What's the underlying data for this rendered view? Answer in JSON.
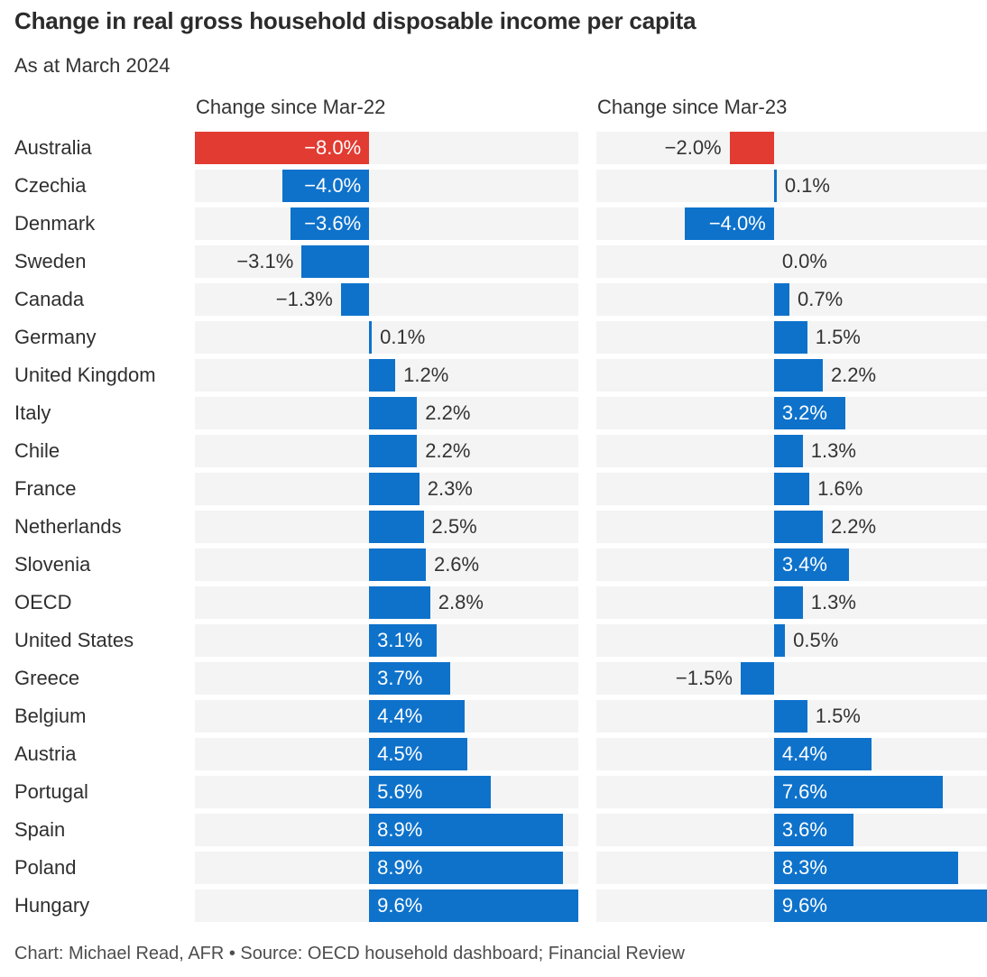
{
  "page": {
    "title": "Change in real gross household disposable income per capita",
    "subtitle": "As at March 2024",
    "footer": "Chart: Michael Read, AFR • Source: OECD household dashboard; Financial Review"
  },
  "chart_data": {
    "type": "bar",
    "orientation": "horizontal",
    "title": "Change in real gross household disposable income per capita",
    "subtitle": "As at March 2024",
    "value_format": "one_decimal_percent",
    "xlim": [
      -8.0,
      9.6
    ],
    "grid": false,
    "legend_position": "none",
    "column_headers": [
      "Change since Mar-22",
      "Change since Mar-23"
    ],
    "categories": [
      "Australia",
      "Czechia",
      "Denmark",
      "Sweden",
      "Canada",
      "Germany",
      "United Kingdom",
      "Italy",
      "Chile",
      "France",
      "Netherlands",
      "Slovenia",
      "OECD",
      "United States",
      "Greece",
      "Belgium",
      "Austria",
      "Portugal",
      "Spain",
      "Poland",
      "Hungary"
    ],
    "series": [
      {
        "name": "Change since Mar-22",
        "values": [
          -8.0,
          -4.0,
          -3.6,
          -3.1,
          -1.3,
          0.1,
          1.2,
          2.2,
          2.2,
          2.3,
          2.5,
          2.6,
          2.8,
          3.1,
          3.7,
          4.4,
          4.5,
          5.6,
          8.9,
          8.9,
          9.6
        ]
      },
      {
        "name": "Change since Mar-23",
        "values": [
          -2.0,
          0.1,
          -4.0,
          0.0,
          0.7,
          1.5,
          2.2,
          3.2,
          1.3,
          1.6,
          2.2,
          3.4,
          1.3,
          0.5,
          -1.5,
          1.5,
          4.4,
          7.6,
          3.6,
          8.3,
          9.6
        ]
      }
    ],
    "highlight_category": "Australia",
    "colors": {
      "bar": "#0e72cb",
      "highlight": "#e23b32",
      "band": "#f4f4f4",
      "label_outside": "#333333",
      "label_inside": "#ffffff"
    }
  }
}
